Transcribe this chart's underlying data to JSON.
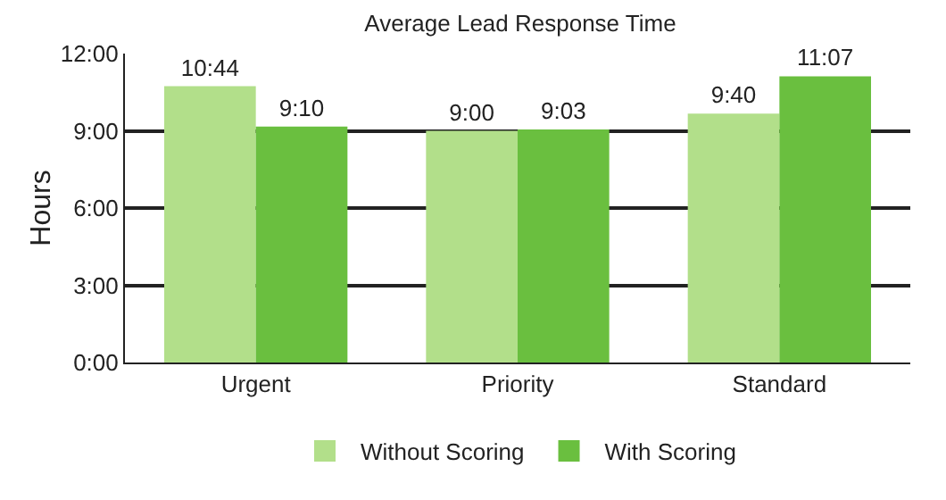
{
  "chart_data": {
    "type": "bar",
    "title": "Average Lead Response Time",
    "ylabel": "Hours",
    "categories": [
      "Urgent",
      "Priority",
      "Standard"
    ],
    "series": [
      {
        "name": "Without Scoring",
        "color": "#b2df8a",
        "values": [
          10.733,
          9,
          9.667
        ],
        "value_labels": [
          "10:44",
          "9:00",
          "9:40"
        ]
      },
      {
        "name": "With Scoring",
        "color": "#6abf3f",
        "values": [
          9.167,
          9.05,
          11.117
        ],
        "value_labels": [
          "9:10",
          "9:03",
          "11:07"
        ]
      }
    ],
    "ylim": [
      0,
      12
    ],
    "yticks": [
      {
        "value": 0,
        "label": "0:00"
      },
      {
        "value": 3,
        "label": "3:00"
      },
      {
        "value": 6,
        "label": "6:00"
      },
      {
        "value": 9,
        "label": "9:00"
      },
      {
        "value": 12,
        "label": "12:00"
      }
    ],
    "grid": "y",
    "legend": "bottom"
  }
}
